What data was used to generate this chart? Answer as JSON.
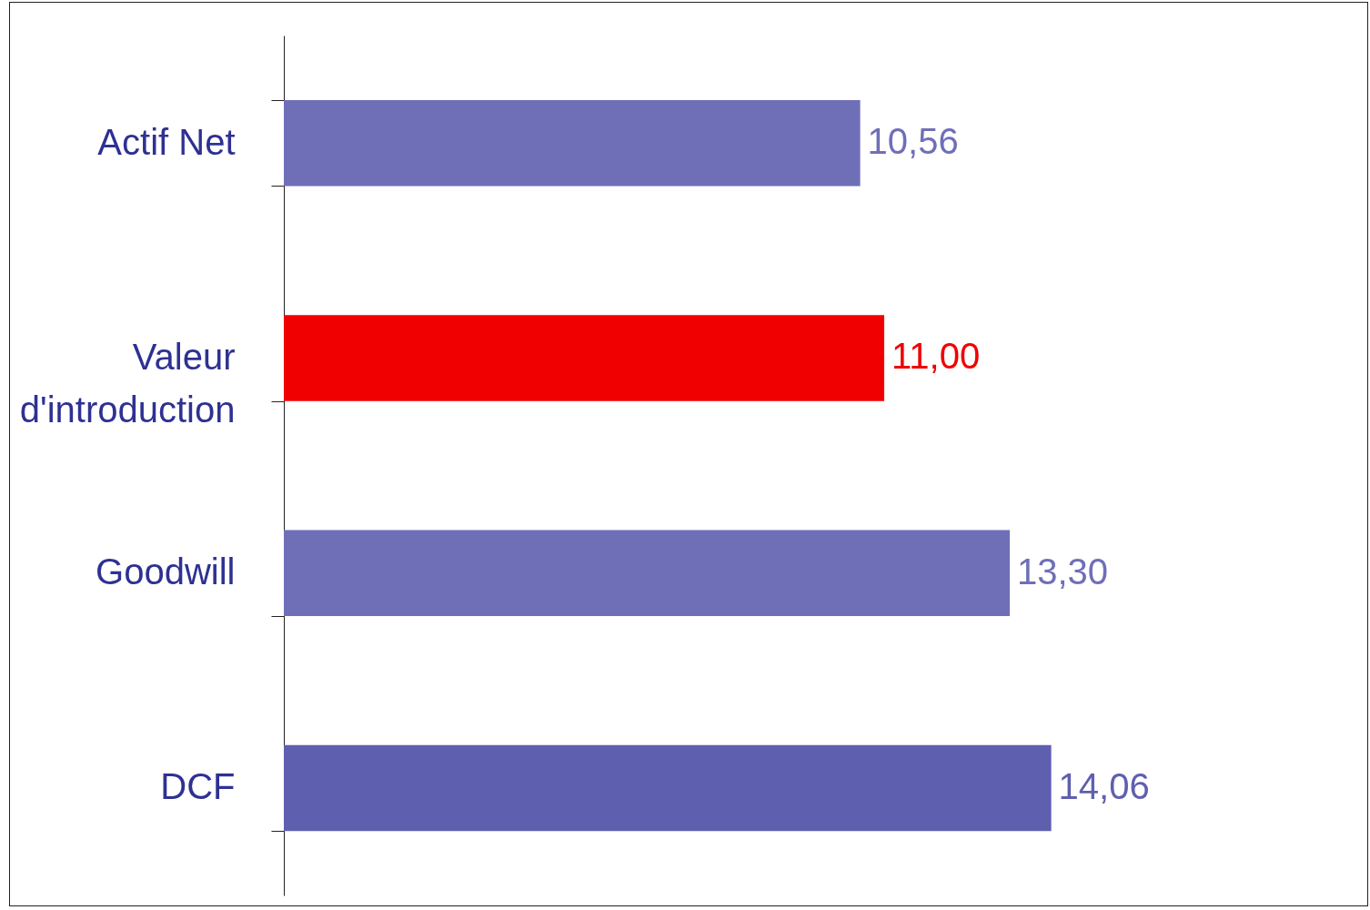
{
  "chart_data": {
    "type": "bar",
    "orientation": "horizontal",
    "categories": [
      "Actif Net",
      "Valeur d'introduction",
      "Goodwill",
      "DCF"
    ],
    "values": [
      10.56,
      11.0,
      13.3,
      14.06
    ],
    "colors": [
      "#6f6fb8",
      "#f00000",
      "#6f6fb8",
      "#5f5fb0"
    ],
    "value_labels": [
      "10,56",
      "11,00",
      "13,30",
      "14,06"
    ],
    "grid": false
  }
}
